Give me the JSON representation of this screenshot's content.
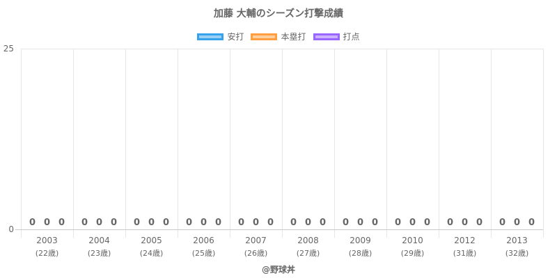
{
  "chart_data": {
    "type": "bar",
    "title": "加藤 大輔のシーズン打撃成績",
    "categories": [
      "2003",
      "2004",
      "2005",
      "2006",
      "2007",
      "2008",
      "2009",
      "2010",
      "2012",
      "2013"
    ],
    "category_sublabels": [
      "(22歳)",
      "(23歳)",
      "(24歳)",
      "(25歳)",
      "(26歳)",
      "(27歳)",
      "(28歳)",
      "(29歳)",
      "(31歳)",
      "(32歳)"
    ],
    "series": [
      {
        "name": "安打",
        "values": [
          0,
          0,
          0,
          0,
          0,
          0,
          0,
          0,
          0,
          0
        ],
        "color": "#36a2eb"
      },
      {
        "name": "本塁打",
        "values": [
          0,
          0,
          0,
          0,
          0,
          0,
          0,
          0,
          0,
          0
        ],
        "color": "#ff9f40"
      },
      {
        "name": "打点",
        "values": [
          0,
          0,
          0,
          0,
          0,
          0,
          0,
          0,
          0,
          0
        ],
        "color": "#9966ff"
      }
    ],
    "ylim": [
      0,
      25
    ],
    "yticks": [
      "0",
      "25"
    ],
    "grid": true,
    "legend": "top"
  },
  "source": "@野球丼"
}
